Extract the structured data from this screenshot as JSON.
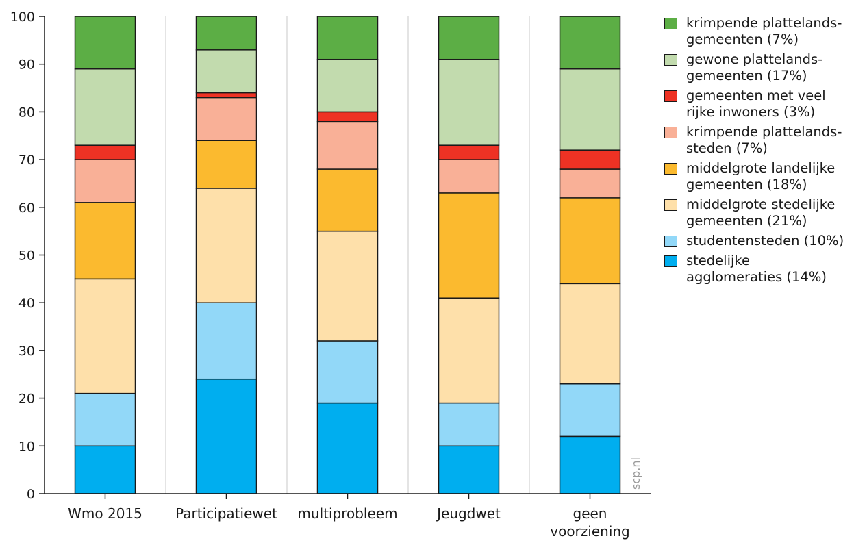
{
  "chart_data": {
    "type": "bar",
    "stacked": true,
    "categories": [
      "Wmo 2015",
      "Participatiewet",
      "multiprobleem",
      "Jeugdwet",
      "geen\nvoorziening"
    ],
    "ylim": [
      0,
      100
    ],
    "yticks": [
      0,
      10,
      20,
      30,
      40,
      50,
      60,
      70,
      80,
      90,
      100
    ],
    "grid": "vertical-between-categories",
    "legend_position": "right",
    "series": [
      {
        "name": "stedelijke\nagglomeraties (14%)",
        "color": "#00aeef",
        "values": [
          10,
          24,
          19,
          10,
          12
        ]
      },
      {
        "name": "studentensteden (10%)",
        "color": "#92d8f8",
        "values": [
          11,
          16,
          13,
          9,
          11
        ]
      },
      {
        "name": "middelgrote stedelijke\ngemeenten (21%)",
        "color": "#fee0aa",
        "values": [
          24,
          24,
          23,
          22,
          21
        ]
      },
      {
        "name": "middelgrote landelijke\ngemeenten (18%)",
        "color": "#fbba2f",
        "values": [
          16,
          10,
          13,
          22,
          18
        ]
      },
      {
        "name": "krimpende plattelands-\nsteden (7%)",
        "color": "#f9b097",
        "values": [
          9,
          9,
          10,
          7,
          6
        ]
      },
      {
        "name": "gemeenten met veel\nrijke inwoners (3%)",
        "color": "#ee3224",
        "values": [
          3,
          1,
          2,
          3,
          4
        ]
      },
      {
        "name": "gewone plattelands-\ngemeenten (17%)",
        "color": "#c2dbae",
        "values": [
          16,
          9,
          11,
          18,
          17
        ]
      },
      {
        "name": "krimpende plattelands-\ngemeenten (7%)",
        "color": "#5cae45",
        "values": [
          11,
          7,
          9,
          9,
          11
        ]
      }
    ],
    "annotation": "scp.nl"
  }
}
